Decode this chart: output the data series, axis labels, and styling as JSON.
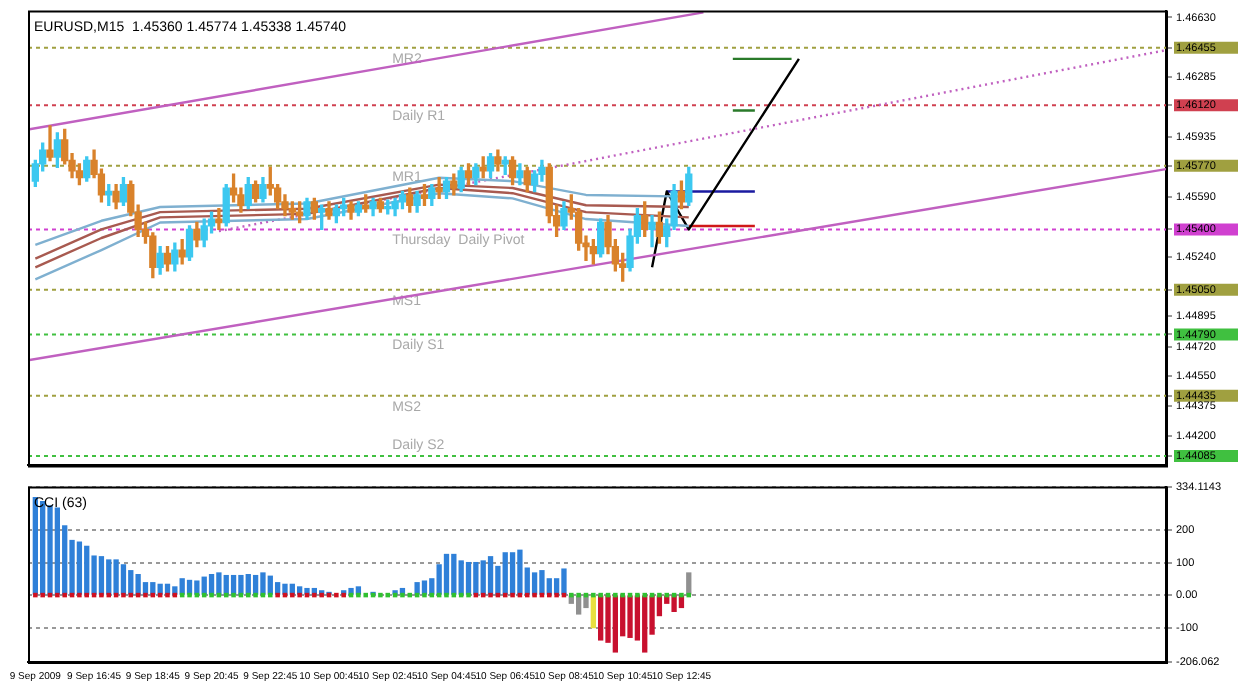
{
  "chart_data": [
    {
      "type": "candlestick",
      "title": "EURUSD,M15  1.45360 1.45774 1.45338 1.45740",
      "x": [
        "2009-09-09T14:45",
        "2009-09-09T15:00",
        "2009-09-09T15:15",
        "2009-09-09T15:30",
        "2009-09-09T15:45",
        "2009-09-09T16:00",
        "2009-09-09T16:15",
        "2009-09-09T16:30",
        "2009-09-09T16:45",
        "2009-09-09T17:00",
        "2009-09-09T17:15",
        "2009-09-09T17:30",
        "2009-09-09T17:45",
        "2009-09-09T18:00",
        "2009-09-09T18:15",
        "2009-09-09T18:30",
        "2009-09-09T18:45",
        "2009-09-09T19:00",
        "2009-09-09T19:15",
        "2009-09-09T19:30",
        "2009-09-09T19:45",
        "2009-09-09T20:00",
        "2009-09-09T20:15",
        "2009-09-09T20:30",
        "2009-09-09T20:45",
        "2009-09-09T21:00",
        "2009-09-09T21:15",
        "2009-09-09T21:30",
        "2009-09-09T21:45",
        "2009-09-09T22:00",
        "2009-09-09T22:15",
        "2009-09-09T22:30",
        "2009-09-09T22:45",
        "2009-09-09T23:00",
        "2009-09-09T23:15",
        "2009-09-09T23:30",
        "2009-09-09T23:45",
        "2009-09-10T00:00",
        "2009-09-10T00:15",
        "2009-09-10T00:30",
        "2009-09-10T00:45",
        "2009-09-10T01:00",
        "2009-09-10T01:15",
        "2009-09-10T01:30",
        "2009-09-10T01:45",
        "2009-09-10T02:00",
        "2009-09-10T02:15",
        "2009-09-10T02:30",
        "2009-09-10T02:45",
        "2009-09-10T03:00",
        "2009-09-10T03:15",
        "2009-09-10T03:30",
        "2009-09-10T03:45",
        "2009-09-10T04:00",
        "2009-09-10T04:15",
        "2009-09-10T04:30",
        "2009-09-10T04:45",
        "2009-09-10T05:00",
        "2009-09-10T05:15",
        "2009-09-10T05:30",
        "2009-09-10T05:45",
        "2009-09-10T06:00",
        "2009-09-10T06:15",
        "2009-09-10T06:30",
        "2009-09-10T06:45",
        "2009-09-10T07:00",
        "2009-09-10T07:15",
        "2009-09-10T07:30",
        "2009-09-10T07:45",
        "2009-09-10T08:00",
        "2009-09-10T08:15",
        "2009-09-10T08:30",
        "2009-09-10T08:45",
        "2009-09-10T09:00",
        "2009-09-10T09:15",
        "2009-09-10T09:30",
        "2009-09-10T09:45",
        "2009-09-10T10:00",
        "2009-09-10T10:15",
        "2009-09-10T10:30",
        "2009-09-10T10:45",
        "2009-09-10T11:00",
        "2009-09-10T11:15",
        "2009-09-10T11:30",
        "2009-09-10T11:45",
        "2009-09-10T12:00",
        "2009-09-10T12:15",
        "2009-09-10T12:30",
        "2009-09-10T12:45",
        "2009-09-10T13:00"
      ],
      "ohlc": [
        [
          1.4568,
          1.458,
          1.4565,
          1.4578
        ],
        [
          1.4578,
          1.459,
          1.4574,
          1.4586
        ],
        [
          1.4586,
          1.46,
          1.458,
          1.4582
        ],
        [
          1.4582,
          1.4596,
          1.4576,
          1.4592
        ],
        [
          1.4592,
          1.4598,
          1.4578,
          1.458
        ],
        [
          1.458,
          1.4584,
          1.457,
          1.4574
        ],
        [
          1.4574,
          1.4578,
          1.4566,
          1.457
        ],
        [
          1.457,
          1.4582,
          1.4568,
          1.458
        ],
        [
          1.458,
          1.4586,
          1.457,
          1.4572
        ],
        [
          1.4572,
          1.4575,
          1.4556,
          1.456
        ],
        [
          1.456,
          1.4566,
          1.4554,
          1.4562
        ],
        [
          1.4562,
          1.4566,
          1.4552,
          1.4556
        ],
        [
          1.4556,
          1.457,
          1.4554,
          1.4566
        ],
        [
          1.4566,
          1.4568,
          1.4548,
          1.455
        ],
        [
          1.455,
          1.4554,
          1.4536,
          1.454
        ],
        [
          1.454,
          1.4544,
          1.4532,
          1.4536
        ],
        [
          1.4536,
          1.4538,
          1.4512,
          1.4518
        ],
        [
          1.4518,
          1.453,
          1.4514,
          1.4526
        ],
        [
          1.4526,
          1.453,
          1.4516,
          1.452
        ],
        [
          1.452,
          1.4532,
          1.4516,
          1.4528
        ],
        [
          1.4528,
          1.4534,
          1.452,
          1.4524
        ],
        [
          1.4524,
          1.4542,
          1.4522,
          1.454
        ],
        [
          1.454,
          1.4544,
          1.453,
          1.4534
        ],
        [
          1.4534,
          1.4546,
          1.453,
          1.4542
        ],
        [
          1.4542,
          1.455,
          1.4538,
          1.4546
        ],
        [
          1.4546,
          1.4552,
          1.454,
          1.4544
        ],
        [
          1.4544,
          1.4566,
          1.4542,
          1.4564
        ],
        [
          1.4564,
          1.4572,
          1.4556,
          1.456
        ],
        [
          1.456,
          1.4564,
          1.455,
          1.4554
        ],
        [
          1.4554,
          1.457,
          1.4552,
          1.4566
        ],
        [
          1.4566,
          1.4568,
          1.4556,
          1.4558
        ],
        [
          1.4558,
          1.457,
          1.4556,
          1.4566
        ],
        [
          1.4566,
          1.4576,
          1.456,
          1.4564
        ],
        [
          1.4564,
          1.4566,
          1.4552,
          1.4556
        ],
        [
          1.4556,
          1.456,
          1.4548,
          1.4552
        ],
        [
          1.4552,
          1.4556,
          1.4546,
          1.455
        ],
        [
          1.455,
          1.4556,
          1.4544,
          1.4548
        ],
        [
          1.4548,
          1.4558,
          1.4546,
          1.4556
        ],
        [
          1.4556,
          1.4558,
          1.4546,
          1.455
        ],
        [
          1.455,
          1.4554,
          1.454,
          1.4552
        ],
        [
          1.4552,
          1.4556,
          1.4546,
          1.4548
        ],
        [
          1.4548,
          1.4554,
          1.4544,
          1.4552
        ],
        [
          1.4552,
          1.4558,
          1.4548,
          1.4554
        ],
        [
          1.4554,
          1.4556,
          1.4546,
          1.455
        ],
        [
          1.455,
          1.4556,
          1.4548,
          1.4554
        ],
        [
          1.4554,
          1.456,
          1.455,
          1.4552
        ],
        [
          1.4552,
          1.4558,
          1.4548,
          1.4556
        ],
        [
          1.4556,
          1.4558,
          1.455,
          1.4552
        ],
        [
          1.4552,
          1.4557,
          1.4549,
          1.4553
        ],
        [
          1.4552,
          1.4558,
          1.4548,
          1.4556
        ],
        [
          1.4556,
          1.4562,
          1.4552,
          1.456
        ],
        [
          1.456,
          1.4564,
          1.455,
          1.4554
        ],
        [
          1.4554,
          1.4562,
          1.455,
          1.456
        ],
        [
          1.456,
          1.4566,
          1.4554,
          1.4558
        ],
        [
          1.4558,
          1.4566,
          1.4554,
          1.4564
        ],
        [
          1.4564,
          1.457,
          1.4558,
          1.4562
        ],
        [
          1.4562,
          1.457,
          1.4558,
          1.4568
        ],
        [
          1.4568,
          1.4572,
          1.456,
          1.4564
        ],
        [
          1.4564,
          1.4576,
          1.4562,
          1.4574
        ],
        [
          1.4574,
          1.4578,
          1.4566,
          1.457
        ],
        [
          1.457,
          1.4578,
          1.4566,
          1.4576
        ],
        [
          1.4576,
          1.4582,
          1.457,
          1.4574
        ],
        [
          1.4574,
          1.4584,
          1.457,
          1.4582
        ],
        [
          1.4582,
          1.4586,
          1.4574,
          1.4578
        ],
        [
          1.4578,
          1.4582,
          1.4572,
          1.458
        ],
        [
          1.458,
          1.4582,
          1.4566,
          1.457
        ],
        [
          1.457,
          1.4578,
          1.4566,
          1.4574
        ],
        [
          1.4574,
          1.4576,
          1.4562,
          1.4566
        ],
        [
          1.4566,
          1.4574,
          1.4562,
          1.4572
        ],
        [
          1.4572,
          1.458,
          1.4568,
          1.4576
        ],
        [
          1.4576,
          1.4578,
          1.4544,
          1.4548
        ],
        [
          1.4548,
          1.4554,
          1.4536,
          1.4542
        ],
        [
          1.4542,
          1.4556,
          1.454,
          1.4552
        ],
        [
          1.4552,
          1.456,
          1.4546,
          1.455
        ],
        [
          1.455,
          1.4552,
          1.4528,
          1.4532
        ],
        [
          1.4532,
          1.4536,
          1.4522,
          1.453
        ],
        [
          1.453,
          1.4534,
          1.452,
          1.4526
        ],
        [
          1.4526,
          1.4546,
          1.4524,
          1.4544
        ],
        [
          1.4544,
          1.4548,
          1.4526,
          1.453
        ],
        [
          1.453,
          1.4534,
          1.4516,
          1.452
        ],
        [
          1.452,
          1.4526,
          1.451,
          1.4518
        ],
        [
          1.4518,
          1.454,
          1.4516,
          1.4536
        ],
        [
          1.4536,
          1.4552,
          1.4532,
          1.4548
        ],
        [
          1.4548,
          1.4556,
          1.4536,
          1.454
        ],
        [
          1.454,
          1.4548,
          1.453,
          1.4544
        ],
        [
          1.4544,
          1.455,
          1.4532,
          1.4536
        ],
        [
          1.4536,
          1.4546,
          1.453,
          1.4542
        ],
        [
          1.4542,
          1.4566,
          1.454,
          1.4562
        ],
        [
          1.4562,
          1.4568,
          1.4552,
          1.4556
        ],
        [
          1.4556,
          1.4576,
          1.4554,
          1.4572
        ]
      ],
      "colors": [
        "#3cc8f0",
        "#3cc8f0",
        "#d9822b",
        "#3cc8f0",
        "#d9822b",
        "#d9822b",
        "#d9822b",
        "#3cc8f0",
        "#d9822b",
        "#d9822b",
        "#3cc8f0",
        "#d9822b",
        "#3cc8f0",
        "#d9822b",
        "#d9822b",
        "#d9822b",
        "#d9822b",
        "#3cc8f0",
        "#d9822b",
        "#3cc8f0",
        "#d9822b",
        "#3cc8f0",
        "#d9822b",
        "#3cc8f0",
        "#3cc8f0",
        "#d9822b",
        "#3cc8f0",
        "#d9822b",
        "#d9822b",
        "#3cc8f0",
        "#d9822b",
        "#3cc8f0",
        "#d9822b",
        "#d9822b",
        "#d9822b",
        "#d9822b",
        "#d9822b",
        "#3cc8f0",
        "#d9822b",
        "#3cc8f0",
        "#d9822b",
        "#3cc8f0",
        "#3cc8f0",
        "#d9822b",
        "#3cc8f0",
        "#d9822b",
        "#3cc8f0",
        "#d9822b",
        "#3cc8f0",
        "#3cc8f0",
        "#3cc8f0",
        "#d9822b",
        "#3cc8f0",
        "#d9822b",
        "#3cc8f0",
        "#d9822b",
        "#3cc8f0",
        "#d9822b",
        "#3cc8f0",
        "#d9822b",
        "#3cc8f0",
        "#d9822b",
        "#3cc8f0",
        "#d9822b",
        "#3cc8f0",
        "#d9822b",
        "#3cc8f0",
        "#d9822b",
        "#3cc8f0",
        "#3cc8f0",
        "#d9822b",
        "#d9822b",
        "#3cc8f0",
        "#d9822b",
        "#d9822b",
        "#d9822b",
        "#d9822b",
        "#3cc8f0",
        "#d9822b",
        "#d9822b",
        "#d9822b",
        "#3cc8f0",
        "#3cc8f0",
        "#d9822b",
        "#3cc8f0",
        "#d9822b",
        "#3cc8f0",
        "#3cc8f0",
        "#d9822b",
        "#3cc8f0"
      ],
      "series": [
        {
          "type": "line",
          "color": "#7fb0d0",
          "x": [
            "2009-09-09T14:45",
            "2009-09-09T17:00",
            "2009-09-09T19:00",
            "2009-09-10T00:00",
            "2009-09-10T04:30",
            "2009-09-10T07:00",
            "2009-09-10T09:30",
            "2009-09-10T13:00"
          ],
          "values": [
            1.4531,
            1.4545,
            1.4553,
            1.4555,
            1.457,
            1.4568,
            1.456,
            1.4559
          ]
        },
        {
          "type": "line",
          "color": "#a85a50",
          "x": [
            "2009-09-09T14:45",
            "2009-09-09T17:00",
            "2009-09-09T19:00",
            "2009-09-10T00:00",
            "2009-09-10T04:30",
            "2009-09-10T07:00",
            "2009-09-10T09:30",
            "2009-09-10T13:00"
          ],
          "values": [
            1.4523,
            1.454,
            1.455,
            1.4552,
            1.4566,
            1.4564,
            1.4554,
            1.4553
          ]
        },
        {
          "type": "line",
          "color": "#a85a50",
          "x": [
            "2009-09-09T14:45",
            "2009-09-09T17:00",
            "2009-09-09T19:00",
            "2009-09-10T00:00",
            "2009-09-10T04:30",
            "2009-09-10T07:00",
            "2009-09-10T09:30",
            "2009-09-10T13:00"
          ],
          "values": [
            1.4518,
            1.4535,
            1.4547,
            1.4549,
            1.4564,
            1.4561,
            1.455,
            1.4547
          ]
        },
        {
          "type": "line",
          "color": "#7fb0d0",
          "x": [
            "2009-09-09T14:45",
            "2009-09-09T17:00",
            "2009-09-09T19:00",
            "2009-09-10T00:00",
            "2009-09-10T04:30",
            "2009-09-10T07:00",
            "2009-09-10T09:30",
            "2009-09-10T13:00"
          ],
          "values": [
            1.4511,
            1.4528,
            1.4544,
            1.4546,
            1.4561,
            1.4558,
            1.4546,
            1.4542
          ]
        },
        {
          "type": "line",
          "color": "#c060c0",
          "x": [
            "2009-09-09T14:30",
            "2009-09-10T13:30"
          ],
          "values": [
            1.4598,
            1.4666
          ]
        },
        {
          "type": "line",
          "color": "#c060c0",
          "x": [
            "2009-09-09T14:30",
            "2009-09-11T05:15"
          ],
          "values": [
            1.4464,
            1.4575
          ]
        },
        {
          "type": "line",
          "color": "#c060c0",
          "line_style": "dotted",
          "x": [
            "2009-09-09T21:00",
            "2009-09-11T05:15"
          ],
          "values": [
            1.4539,
            1.4644
          ]
        },
        {
          "type": "line",
          "color": "#000000",
          "x": [
            "2009-09-10T11:45",
            "2009-09-10T12:15",
            "2009-09-10T13:00",
            "2009-09-10T16:45"
          ],
          "values": [
            1.4518,
            1.4562,
            1.454,
            1.4639
          ]
        },
        {
          "type": "line",
          "color": "#1a1aa0",
          "x": [
            "2009-09-10T12:15",
            "2009-09-10T15:15"
          ],
          "values": [
            1.4562,
            1.4562
          ]
        },
        {
          "type": "line",
          "color": "#d01818",
          "x": [
            "2009-09-10T13:00",
            "2009-09-10T15:15"
          ],
          "values": [
            1.4542,
            1.4542
          ]
        },
        {
          "type": "line",
          "color": "#2a7a2a",
          "x": [
            "2009-09-10T14:30",
            "2009-09-10T16:30"
          ],
          "values": [
            1.4639,
            1.4639
          ]
        },
        {
          "type": "line",
          "color": "#2a7a2a",
          "x": [
            "2009-09-10T14:30",
            "2009-09-10T15:15"
          ],
          "values": [
            1.4609,
            1.4609
          ]
        }
      ],
      "ref_lines": [
        {
          "axis": "y",
          "value": 1.46455,
          "label": "MR2",
          "color": "#a0a040"
        },
        {
          "axis": "y",
          "value": 1.4612,
          "label": "Daily R1",
          "color": "#d04050"
        },
        {
          "axis": "y",
          "value": 1.4577,
          "label": "MR1",
          "color": "#a0a040"
        },
        {
          "axis": "y",
          "value": 1.454,
          "label": "Thursday  Daily Pivot",
          "color": "#d040d0"
        },
        {
          "axis": "y",
          "value": 1.4505,
          "label": "MS1",
          "color": "#a0a040"
        },
        {
          "axis": "y",
          "value": 1.4479,
          "label": "Daily S1",
          "color": "#40c040"
        },
        {
          "axis": "y",
          "value": 1.44435,
          "label": "MS2",
          "color": "#a0a040"
        },
        {
          "axis": "y",
          "value": 1.44085,
          "label": "Daily S2",
          "color": "#40c040"
        }
      ],
      "xlim": [
        "2009-09-09T14:30",
        "2009-09-11T05:15"
      ],
      "ylim": [
        1.4403,
        1.4667
      ],
      "yticks": [
        {
          "value": 1.4663,
          "label": "1.46630"
        },
        1.46455,
        1.46285,
        {
          "value": 1.4612,
          "label": "1.46120"
        },
        1.45935,
        {
          "value": 1.4577,
          "label": "1.45770"
        },
        {
          "value": 1.4559,
          "label": "1.45590"
        },
        {
          "value": 1.454,
          "label": "1.45400"
        },
        {
          "value": 1.4524,
          "label": "1.45240"
        },
        {
          "value": 1.4505,
          "label": "1.45050"
        },
        1.44895,
        {
          "value": 1.4479,
          "label": "1.44790"
        },
        {
          "value": 1.4472,
          "label": "1.44720"
        },
        {
          "value": 1.4455,
          "label": "1.44550"
        },
        1.44435,
        1.44375,
        {
          "value": 1.442,
          "label": "1.44200"
        },
        1.44085
      ],
      "tick_labels": "y"
    },
    {
      "type": "bar",
      "title": "CCI (63)",
      "x": [
        "2009-09-09T14:45",
        "2009-09-09T15:00",
        "2009-09-09T15:15",
        "2009-09-09T15:30",
        "2009-09-09T15:45",
        "2009-09-09T16:00",
        "2009-09-09T16:15",
        "2009-09-09T16:30",
        "2009-09-09T16:45",
        "2009-09-09T17:00",
        "2009-09-09T17:15",
        "2009-09-09T17:30",
        "2009-09-09T17:45",
        "2009-09-09T18:00",
        "2009-09-09T18:15",
        "2009-09-09T18:30",
        "2009-09-09T18:45",
        "2009-09-09T19:00",
        "2009-09-09T19:15",
        "2009-09-09T19:30",
        "2009-09-09T19:45",
        "2009-09-09T20:00",
        "2009-09-09T20:15",
        "2009-09-09T20:30",
        "2009-09-09T20:45",
        "2009-09-09T21:00",
        "2009-09-09T21:15",
        "2009-09-09T21:30",
        "2009-09-09T21:45",
        "2009-09-09T22:00",
        "2009-09-09T22:15",
        "2009-09-09T22:30",
        "2009-09-09T22:45",
        "2009-09-09T23:00",
        "2009-09-09T23:15",
        "2009-09-09T23:30",
        "2009-09-09T23:45",
        "2009-09-10T00:00",
        "2009-09-10T00:15",
        "2009-09-10T00:30",
        "2009-09-10T00:45",
        "2009-09-10T01:00",
        "2009-09-10T01:15",
        "2009-09-10T01:30",
        "2009-09-10T01:45",
        "2009-09-10T02:00",
        "2009-09-10T02:15",
        "2009-09-10T02:30",
        "2009-09-10T02:45",
        "2009-09-10T03:00",
        "2009-09-10T03:15",
        "2009-09-10T03:30",
        "2009-09-10T03:45",
        "2009-09-10T04:00",
        "2009-09-10T04:15",
        "2009-09-10T04:30",
        "2009-09-10T04:45",
        "2009-09-10T05:00",
        "2009-09-10T05:15",
        "2009-09-10T05:30",
        "2009-09-10T05:45",
        "2009-09-10T06:00",
        "2009-09-10T06:15",
        "2009-09-10T06:30",
        "2009-09-10T06:45",
        "2009-09-10T07:00",
        "2009-09-10T07:15",
        "2009-09-10T07:30",
        "2009-09-10T07:45",
        "2009-09-10T08:00",
        "2009-09-10T08:15",
        "2009-09-10T08:30",
        "2009-09-10T08:45",
        "2009-09-10T09:00",
        "2009-09-10T09:15",
        "2009-09-10T09:30",
        "2009-09-10T09:45",
        "2009-09-10T10:00",
        "2009-09-10T10:15",
        "2009-09-10T10:30",
        "2009-09-10T10:45",
        "2009-09-10T11:00",
        "2009-09-10T11:15",
        "2009-09-10T11:30",
        "2009-09-10T11:45",
        "2009-09-10T12:00",
        "2009-09-10T12:15",
        "2009-09-10T12:30",
        "2009-09-10T12:45",
        "2009-09-10T13:00"
      ],
      "values": [
        300,
        288,
        275,
        268,
        213,
        168,
        163,
        150,
        120,
        118,
        108,
        108,
        93,
        75,
        63,
        38,
        38,
        33,
        33,
        25,
        50,
        45,
        43,
        55,
        63,
        68,
        60,
        60,
        60,
        63,
        60,
        68,
        58,
        38,
        33,
        33,
        25,
        20,
        20,
        13,
        8,
        null,
        13,
        20,
        25,
        null,
        8,
        null,
        null,
        13,
        20,
        null,
        38,
        43,
        50,
        93,
        125,
        125,
        105,
        100,
        100,
        105,
        118,
        88,
        130,
        130,
        138,
        83,
        68,
        75,
        50,
        50,
        80,
        -25,
        -58,
        -38,
        -100,
        -138,
        -145,
        -175,
        -125,
        -130,
        -138,
        -175,
        -120,
        -63,
        -25,
        -50,
        -38,
        68
      ],
      "colors": [
        "#2f80d8",
        "#2f80d8",
        "#2f80d8",
        "#2f80d8",
        "#2f80d8",
        "#2f80d8",
        "#2f80d8",
        "#2f80d8",
        "#2f80d8",
        "#2f80d8",
        "#2f80d8",
        "#2f80d8",
        "#2f80d8",
        "#2f80d8",
        "#2f80d8",
        "#2f80d8",
        "#2f80d8",
        "#2f80d8",
        "#2f80d8",
        "#2f80d8",
        "#2f80d8",
        "#2f80d8",
        "#2f80d8",
        "#2f80d8",
        "#2f80d8",
        "#2f80d8",
        "#2f80d8",
        "#2f80d8",
        "#2f80d8",
        "#2f80d8",
        "#2f80d8",
        "#2f80d8",
        "#2f80d8",
        "#2f80d8",
        "#2f80d8",
        "#2f80d8",
        "#2f80d8",
        "#2f80d8",
        "#2f80d8",
        "#2f80d8",
        "#2f80d8",
        "#2f80d8",
        "#2f80d8",
        "#2f80d8",
        "#2f80d8",
        "#2f80d8",
        "#2f80d8",
        "#2f80d8",
        "#2f80d8",
        "#2f80d8",
        "#2f80d8",
        "#2f80d8",
        "#2f80d8",
        "#2f80d8",
        "#2f80d8",
        "#2f80d8",
        "#2f80d8",
        "#2f80d8",
        "#2f80d8",
        "#2f80d8",
        "#2f80d8",
        "#2f80d8",
        "#2f80d8",
        "#2f80d8",
        "#2f80d8",
        "#2f80d8",
        "#2f80d8",
        "#2f80d8",
        "#2f80d8",
        "#2f80d8",
        "#2f80d8",
        "#2f80d8",
        "#2f80d8",
        "#909090",
        "#909090",
        "#909090",
        "#e8e040",
        "#c8102e",
        "#c8102e",
        "#c8102e",
        "#c8102e",
        "#c8102e",
        "#c8102e",
        "#c8102e",
        "#c8102e",
        "#c8102e",
        "#c8102e",
        "#c8102e",
        "#c8102e",
        "#909090"
      ],
      "series": [
        {
          "type": "scatter",
          "marker": "square",
          "x": [
            "2009-09-09T14:45",
            "2009-09-09T15:00",
            "2009-09-09T15:15",
            "2009-09-09T15:30",
            "2009-09-09T15:45",
            "2009-09-09T16:00",
            "2009-09-09T16:15",
            "2009-09-09T16:30",
            "2009-09-09T16:45",
            "2009-09-09T17:00",
            "2009-09-09T17:15",
            "2009-09-09T17:30",
            "2009-09-09T17:45",
            "2009-09-09T18:00",
            "2009-09-09T18:15",
            "2009-09-09T18:30",
            "2009-09-09T18:45",
            "2009-09-09T19:00",
            "2009-09-09T19:15",
            "2009-09-09T19:30",
            "2009-09-09T19:45",
            "2009-09-09T20:00",
            "2009-09-09T20:15",
            "2009-09-09T20:30",
            "2009-09-09T20:45",
            "2009-09-09T21:00",
            "2009-09-09T21:15",
            "2009-09-09T21:30",
            "2009-09-09T21:45",
            "2009-09-09T22:00",
            "2009-09-09T22:15",
            "2009-09-09T22:30",
            "2009-09-09T22:45",
            "2009-09-09T23:00",
            "2009-09-09T23:15",
            "2009-09-09T23:30",
            "2009-09-09T23:45",
            "2009-09-10T00:00",
            "2009-09-10T00:15",
            "2009-09-10T00:30",
            "2009-09-10T00:45",
            "2009-09-10T01:00",
            "2009-09-10T01:15",
            "2009-09-10T01:30",
            "2009-09-10T01:45",
            "2009-09-10T02:00",
            "2009-09-10T02:15",
            "2009-09-10T02:30",
            "2009-09-10T02:45",
            "2009-09-10T03:00",
            "2009-09-10T03:15",
            "2009-09-10T03:30",
            "2009-09-10T03:45",
            "2009-09-10T04:00",
            "2009-09-10T04:15",
            "2009-09-10T04:30",
            "2009-09-10T04:45",
            "2009-09-10T05:00",
            "2009-09-10T05:15",
            "2009-09-10T05:30",
            "2009-09-10T05:45",
            "2009-09-10T06:00",
            "2009-09-10T06:15",
            "2009-09-10T06:30",
            "2009-09-10T06:45",
            "2009-09-10T07:00",
            "2009-09-10T07:15",
            "2009-09-10T07:30",
            "2009-09-10T07:45",
            "2009-09-10T08:00",
            "2009-09-10T08:15",
            "2009-09-10T08:30",
            "2009-09-10T08:45",
            "2009-09-10T09:00",
            "2009-09-10T09:15",
            "2009-09-10T09:30",
            "2009-09-10T09:45",
            "2009-09-10T10:00",
            "2009-09-10T10:15",
            "2009-09-10T10:30",
            "2009-09-10T10:45",
            "2009-09-10T11:00",
            "2009-09-10T11:15",
            "2009-09-10T11:30",
            "2009-09-10T11:45",
            "2009-09-10T12:00",
            "2009-09-10T12:15",
            "2009-09-10T12:30",
            "2009-09-10T12:45",
            "2009-09-10T13:00"
          ],
          "values": [
            0,
            0,
            0,
            0,
            0,
            0,
            0,
            0,
            0,
            0,
            0,
            0,
            0,
            0,
            0,
            0,
            0,
            0,
            0,
            0,
            0,
            0,
            0,
            0,
            0,
            0,
            0,
            0,
            0,
            0,
            0,
            0,
            0,
            0,
            0,
            0,
            0,
            0,
            0,
            0,
            0,
            0,
            0,
            0,
            0,
            0,
            0,
            0,
            0,
            0,
            0,
            0,
            0,
            0,
            0,
            0,
            0,
            0,
            0,
            0,
            0,
            0,
            0,
            0,
            0,
            0,
            0,
            0,
            0,
            0,
            0,
            0,
            0,
            0,
            0,
            0,
            0,
            0,
            0,
            0,
            0,
            0,
            0,
            0,
            0,
            0,
            0,
            0,
            0,
            0
          ],
          "colors": [
            "#d01020",
            "#d01020",
            "#d01020",
            "#d01020",
            "#d01020",
            "#d01020",
            "#d01020",
            "#d01020",
            "#d01020",
            "#d01020",
            "#d01020",
            "#d01020",
            "#d01020",
            "#d01020",
            "#d01020",
            "#d01020",
            "#d01020",
            "#d01020",
            "#d01020",
            "#d01020",
            "#30c030",
            "#30c030",
            "#30c030",
            "#30c030",
            "#30c030",
            "#30c030",
            "#30c030",
            "#30c030",
            "#30c030",
            "#30c030",
            "#30c030",
            "#30c030",
            "#30c030",
            "#d01020",
            "#d01020",
            "#d01020",
            "#d01020",
            "#d01020",
            "#d01020",
            "#d01020",
            "#d01020",
            "#d01020",
            "#d01020",
            "#30c030",
            "#30c030",
            "#30c030",
            "#30c030",
            "#30c030",
            "#30c030",
            "#30c030",
            "#30c030",
            "#30c030",
            "#30c030",
            "#30c030",
            "#30c030",
            "#30c030",
            "#30c030",
            "#30c030",
            "#30c030",
            "#30c030",
            "#d01020",
            "#d01020",
            "#d01020",
            "#d01020",
            "#d01020",
            "#d01020",
            "#d01020",
            "#d01020",
            "#d01020",
            "#d01020",
            "#d01020",
            "#d01020",
            "#d01020",
            "#30c030",
            "#30c030",
            "#30c030",
            "#30c030",
            "#30c030",
            "#30c030",
            "#30c030",
            "#30c030",
            "#30c030",
            "#30c030",
            "#30c030",
            "#30c030",
            "#30c030",
            "#30c030",
            "#30c030",
            "#30c030",
            "#30c030"
          ]
        }
      ],
      "xlim": [
        "2009-09-09T14:30",
        "2009-09-11T05:15"
      ],
      "ylim": [
        -206.062,
        334.1143
      ],
      "xticks": [
        {
          "value": "2009-09-09T14:45",
          "label": "9 Sep 2009"
        },
        {
          "value": "2009-09-09T16:45",
          "label": "9 Sep 16:45"
        },
        {
          "value": "2009-09-09T18:45",
          "label": "9 Sep 18:45"
        },
        {
          "value": "2009-09-09T20:45",
          "label": "9 Sep 20:45"
        },
        {
          "value": "2009-09-09T22:45",
          "label": "9 Sep 22:45"
        },
        {
          "value": "2009-09-10T00:45",
          "label": "10 Sep 00:45"
        },
        {
          "value": "2009-09-10T02:45",
          "label": "10 Sep 02:45"
        },
        {
          "value": "2009-09-10T04:45",
          "label": "10 Sep 04:45"
        },
        {
          "value": "2009-09-10T06:45",
          "label": "10 Sep 06:45"
        },
        {
          "value": "2009-09-10T08:45",
          "label": "10 Sep 08:45"
        },
        {
          "value": "2009-09-10T10:45",
          "label": "10 Sep 10:45"
        },
        {
          "value": "2009-09-10T12:45",
          "label": "10 Sep 12:45"
        }
      ],
      "yticks": [
        334.1143,
        200,
        100,
        {
          "value": 0,
          "label": "0.00"
        },
        -100,
        -206.062
      ],
      "grid": "y"
    }
  ]
}
